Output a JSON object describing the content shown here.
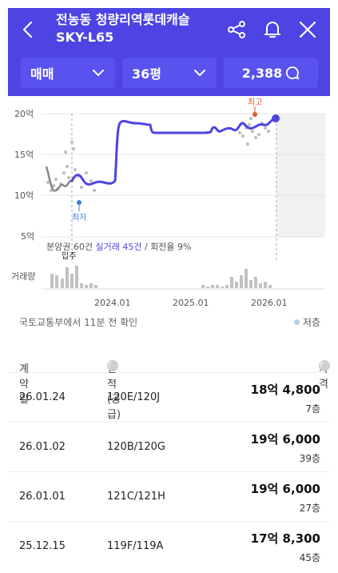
{
  "header": {
    "title": "전농동 청량리역롯데캐슬 SKY-L65",
    "filters": {
      "trade_type": "매매",
      "size": "36평",
      "count": "2,388"
    }
  },
  "chart_data": {
    "type": "line",
    "y_ticks": [
      "20억",
      "15억",
      "10억",
      "5억"
    ],
    "x_ticks": [
      "2024.01",
      "2025.01",
      "2026.01"
    ],
    "ylim": [
      5,
      20
    ],
    "markers": {
      "high": "최고",
      "low": "최저",
      "move_in": "입주"
    },
    "volume_label": "거래량",
    "summary": {
      "presale": "분양권 60건",
      "actual": "실거래 45건",
      "turnover": "/ 회전율 9%"
    }
  },
  "confirm_text": "국토교통부에서 11분 전 확인",
  "legend": {
    "low_label": "저층"
  },
  "table": {
    "headers": {
      "date": "계약일",
      "area": "면적(공급)",
      "price": "가격"
    },
    "rows": [
      {
        "date": "26.01.24",
        "area": "120E/120J",
        "price": "18억 4,800",
        "floor": "7층"
      },
      {
        "date": "26.01.02",
        "area": "120B/120G",
        "price": "19억 6,000",
        "floor": "39층"
      },
      {
        "date": "26.01.01",
        "area": "121C/121H",
        "price": "19억 6,000",
        "floor": "27층"
      },
      {
        "date": "25.12.15",
        "area": "119F/119A",
        "price": "17억 8,300",
        "floor": "45층"
      }
    ]
  }
}
